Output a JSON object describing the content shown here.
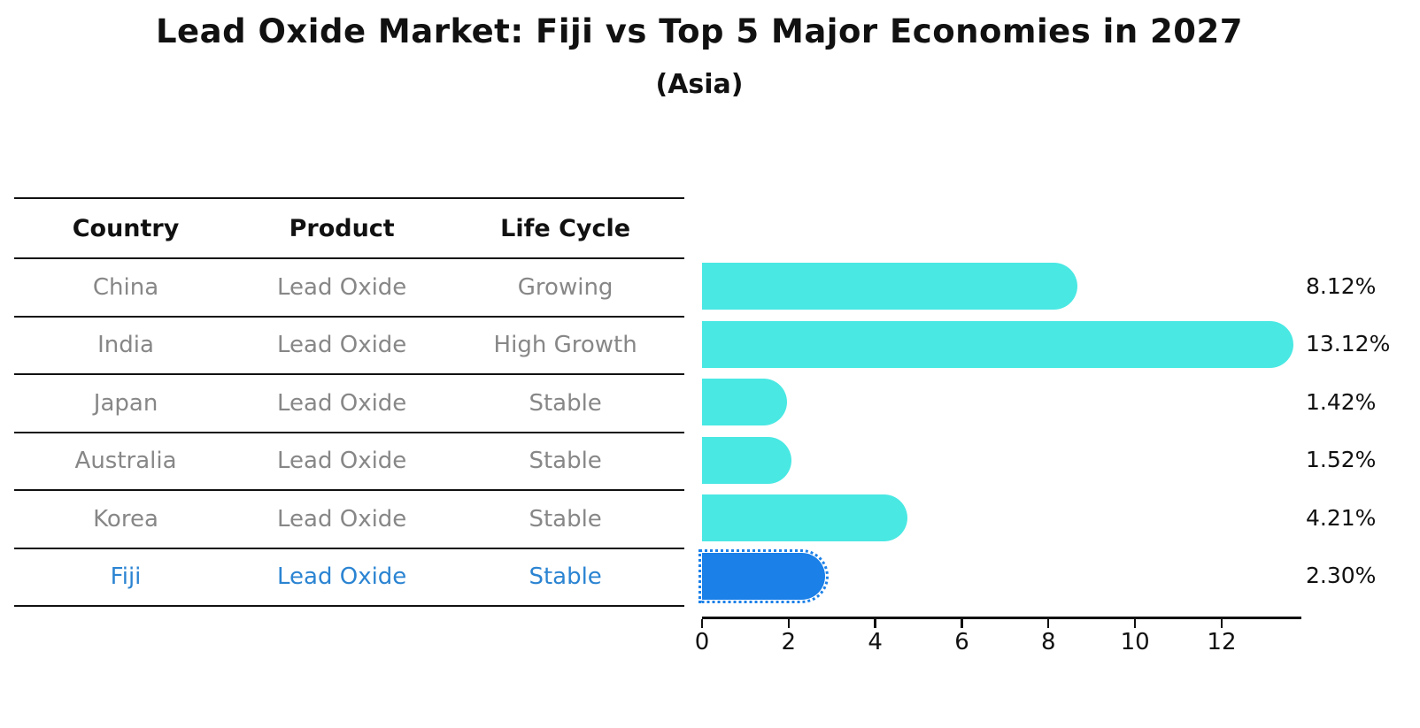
{
  "title": "Lead Oxide Market: Fiji vs Top 5 Major Economies in 2027",
  "subtitle": "(Asia)",
  "table": {
    "headers": [
      "Country",
      "Product",
      "Life Cycle"
    ],
    "rows": [
      {
        "country": "China",
        "product": "Lead Oxide",
        "life_cycle": "Growing",
        "highlight": false
      },
      {
        "country": "India",
        "product": "Lead Oxide",
        "life_cycle": "High Growth",
        "highlight": false
      },
      {
        "country": "Japan",
        "product": "Lead Oxide",
        "life_cycle": "Stable",
        "highlight": false
      },
      {
        "country": "Australia",
        "product": "Lead Oxide",
        "life_cycle": "Stable",
        "highlight": false
      },
      {
        "country": "Korea",
        "product": "Lead Oxide",
        "life_cycle": "Stable",
        "highlight": false
      },
      {
        "country": "Fiji",
        "product": "Lead Oxide",
        "life_cycle": "Stable",
        "highlight": true
      }
    ]
  },
  "chart_data": {
    "type": "bar",
    "orientation": "horizontal",
    "categories": [
      "China",
      "India",
      "Japan",
      "Australia",
      "Korea",
      "Fiji"
    ],
    "values": [
      8.12,
      13.12,
      1.42,
      1.52,
      4.21,
      2.3
    ],
    "bar_labels": [
      "8.12%",
      "13.12%",
      "1.42%",
      "1.52%",
      "4.21%",
      "2.30%"
    ],
    "x_ticks": [
      0,
      2,
      4,
      6,
      8,
      10,
      12
    ],
    "xlim": [
      0,
      13.8
    ],
    "grid": false,
    "legend": "none",
    "highlight_index": 5,
    "title": "Lead Oxide Market: Fiji vs Top 5 Major Economies in 2027",
    "subtitle": "(Asia)",
    "xlabel": "",
    "ylabel": ""
  },
  "colors": {
    "bar": "#49E8E3",
    "highlight_bar": "#1B80E8",
    "highlight_text": "#2B84D2",
    "table_text": "#878787",
    "axis": "#111111"
  }
}
